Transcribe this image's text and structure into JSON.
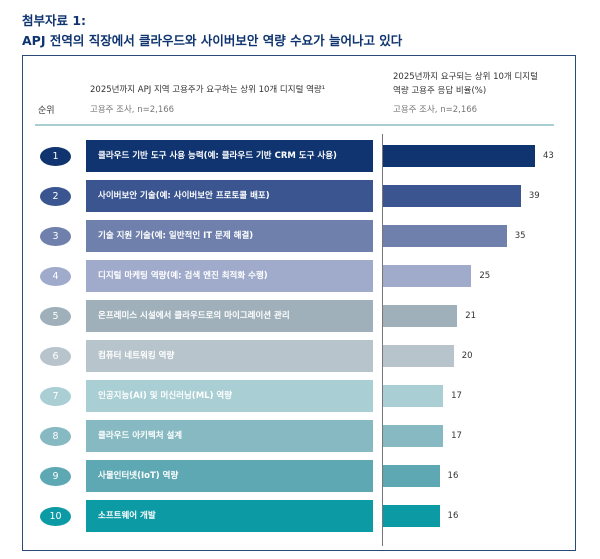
{
  "title_line1": "첨부자료 1:",
  "title_line2": "APJ 전역의 직장에서 클라우드와 사이버보안 역량 수요가 늘어나고 있다",
  "chart_data": {
    "type": "bar",
    "orientation": "horizontal",
    "rank_header": "순위",
    "left_header": "2025년까지 APJ 지역 고용주가 요구하는 상위 10개 디지털 역량¹",
    "left_sub": "고용주 조사, n=2,166",
    "right_header_line1": "2025년까지 요구되는 상위 10개 디지털",
    "right_header_line2": "역량 고용주 응답 비율(%)",
    "right_sub": "고용주 조사, n=2,166",
    "ranks": [
      "1",
      "2",
      "3",
      "4",
      "5",
      "6",
      "7",
      "8",
      "9",
      "10"
    ],
    "categories": [
      "클라우드 기반 도구 사용 능력(예: 클라우드 기반 CRM 도구 사용)",
      "사이버보안 기술(예: 사이버보안 프로토콜 배포)",
      "기술 지원 기술(예: 일반적인 IT 문제 해결)",
      "디지털 마케팅 역량(예: 검색 엔진 최적화 수행)",
      "온프레미스 시설에서 클라우드로의 마이그레이션 관리",
      "컴퓨터 네트워킹 역량",
      "인공지능(AI) 및 머신러닝(ML) 역량",
      "클라우드 아키텍처 설계",
      "사물인터넷(IoT) 역량",
      "소프트웨어 개발"
    ],
    "values": [
      43,
      39,
      35,
      25,
      21,
      20,
      17,
      17,
      16,
      16
    ],
    "colors": [
      "#0f3470",
      "#3a5590",
      "#6f80ad",
      "#a0abcc",
      "#9fb0ba",
      "#b8c4cc",
      "#a9ced4",
      "#86b9c1",
      "#5ea8b4",
      "#0c9aa4"
    ],
    "xlim": [
      0,
      43
    ]
  }
}
